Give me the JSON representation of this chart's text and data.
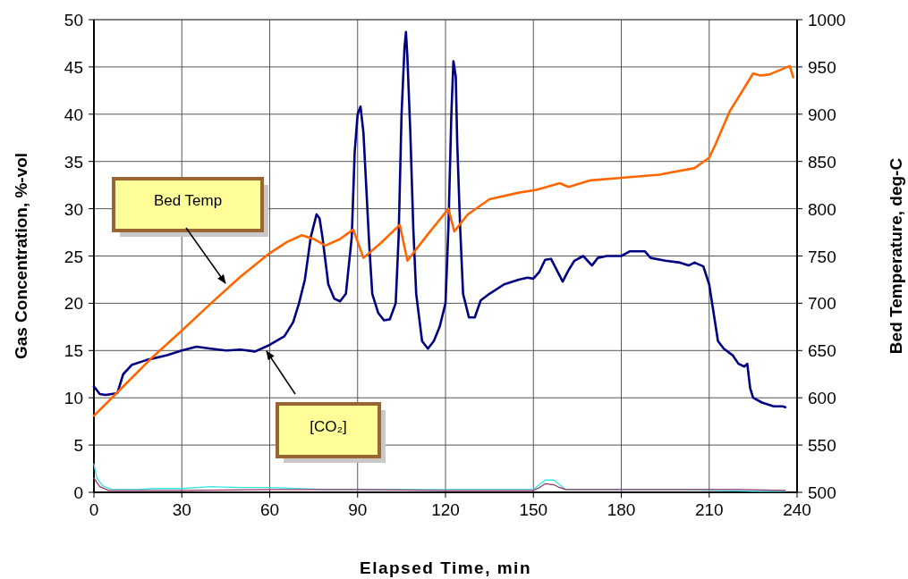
{
  "chart_data": {
    "type": "line",
    "xlabel": "Elapsed Time, min",
    "ylabel": "Gas Concentration, %-vol",
    "y2label": "Bed Temperature, deg-C",
    "xlim": [
      0,
      240
    ],
    "xticks": [
      0,
      30,
      60,
      90,
      120,
      150,
      180,
      210,
      240
    ],
    "ylim": [
      0,
      50
    ],
    "yticks": [
      0,
      5,
      10,
      15,
      20,
      25,
      30,
      35,
      40,
      45,
      50
    ],
    "y2lim": [
      500,
      1000
    ],
    "y2ticks": [
      500,
      550,
      600,
      650,
      700,
      750,
      800,
      850,
      900,
      950,
      1000
    ],
    "grid": true,
    "annotations": [
      "Bed Temp",
      "[CO₂]"
    ],
    "series": [
      {
        "color": "#000080",
        "x": [
          0,
          2,
          4,
          6,
          8,
          10,
          13,
          18,
          25,
          30,
          35,
          40,
          45,
          50,
          55,
          60,
          65,
          68,
          70,
          72,
          74,
          76,
          77,
          78,
          80,
          82,
          84,
          86,
          88,
          89,
          90,
          91,
          92,
          93,
          94,
          95,
          97,
          99,
          101,
          103,
          104,
          105,
          106,
          106.5,
          107,
          108,
          109,
          110,
          112,
          114,
          116,
          118,
          120,
          121,
          122,
          122.7,
          123.5,
          124,
          125,
          126,
          128,
          130,
          132,
          135,
          140,
          145,
          148,
          150,
          152,
          154,
          156,
          158,
          160,
          162,
          164,
          167,
          170,
          172,
          175,
          180,
          183,
          186,
          188,
          190,
          195,
          200,
          203,
          205,
          208,
          210,
          212,
          213,
          215,
          218,
          220,
          222,
          223,
          224,
          225,
          228,
          232,
          235,
          236
        ],
        "values": [
          11.2,
          10.4,
          10.3,
          10.4,
          10.5,
          12.5,
          13.5,
          14,
          14.5,
          15,
          15.4,
          15.2,
          15,
          15.1,
          14.9,
          15.6,
          16.5,
          18,
          20,
          22.5,
          27,
          29.4,
          29,
          27,
          22,
          20.5,
          20.2,
          21,
          27,
          36,
          40,
          40.8,
          38,
          32,
          26,
          21,
          19,
          18.2,
          18.3,
          20,
          27,
          40,
          47,
          48.7,
          46,
          38,
          28,
          21,
          16,
          15.2,
          16,
          17.5,
          20,
          28,
          40,
          45.6,
          44,
          37,
          28,
          21,
          18.5,
          18.5,
          20.3,
          21,
          22,
          22.5,
          22.7,
          22.6,
          23.3,
          24.6,
          24.7,
          23.5,
          22.3,
          23.5,
          24.5,
          25,
          24,
          24.8,
          25,
          25,
          25.5,
          25.5,
          25.5,
          24.8,
          24.5,
          24.3,
          24,
          24.3,
          23.9,
          22,
          18,
          16,
          15.2,
          14.5,
          13.6,
          13.3,
          13.6,
          11,
          10,
          9.5,
          9.1,
          9.1,
          9
        ]
      },
      {
        "color": "#ff6600",
        "axis": "y2",
        "x": [
          0,
          10,
          20,
          30,
          40,
          50,
          60,
          66,
          71,
          75,
          79,
          84,
          88.5,
          92,
          98,
          104.4,
          107,
          114,
          121,
          123,
          127.6,
          135,
          145,
          151,
          159,
          162,
          169.5,
          181,
          193,
          205,
          210,
          212,
          217,
          221,
          225,
          227.5,
          230.5,
          237.5,
          238.7
        ],
        "values": [
          581,
          612,
          643,
          671,
          700,
          728,
          753,
          765,
          772,
          768,
          761,
          768,
          778,
          748,
          764,
          783,
          745,
          773,
          800,
          776,
          794,
          810,
          817,
          820,
          827,
          823,
          830,
          833,
          836,
          843,
          854,
          867,
          903,
          923,
          943,
          941,
          942,
          951,
          939
        ]
      },
      {
        "color": "#33e6e6",
        "x": [
          0,
          1,
          3,
          6,
          15,
          20,
          30,
          40,
          50,
          60,
          80,
          100,
          150,
          152,
          154,
          157,
          159,
          161,
          200,
          225,
          236
        ],
        "values": [
          3,
          1.5,
          0.7,
          0.3,
          0.3,
          0.4,
          0.4,
          0.6,
          0.5,
          0.5,
          0.3,
          0.3,
          0.3,
          0.8,
          1.3,
          1.3,
          0.8,
          0.3,
          0.3,
          0.1,
          0.1
        ]
      },
      {
        "color": "#993366",
        "x": [
          0,
          2,
          5,
          30,
          60,
          90,
          120,
          150,
          152,
          154,
          157,
          159,
          161,
          200,
          220,
          236
        ],
        "values": [
          1.5,
          0.6,
          0.2,
          0.2,
          0.3,
          0.3,
          0.2,
          0.2,
          0.5,
          0.9,
          0.8,
          0.5,
          0.3,
          0.3,
          0.3,
          0.2
        ]
      }
    ]
  }
}
